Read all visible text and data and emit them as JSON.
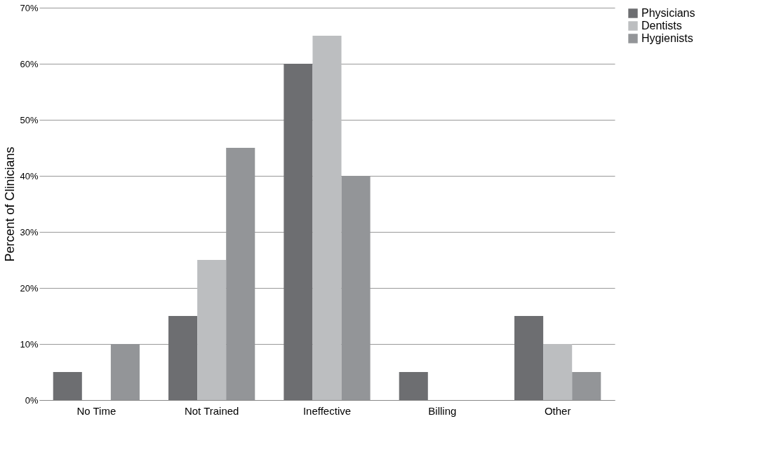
{
  "chart_data": {
    "type": "bar",
    "ylabel": "Percent of Clinicians",
    "categories": [
      "No Time",
      "Not Trained",
      "Ineffective",
      "Billing",
      "Other"
    ],
    "series": [
      {
        "name": "Physicians",
        "color": "#6d6e71",
        "values": [
          5,
          15,
          60,
          5,
          15
        ]
      },
      {
        "name": "Dentists",
        "color": "#bcbec0",
        "values": [
          0,
          25,
          65,
          0,
          10
        ]
      },
      {
        "name": "Hygienists",
        "color": "#939598",
        "values": [
          10,
          45,
          40,
          0,
          5
        ]
      }
    ],
    "ylim": [
      0,
      70
    ],
    "yticks": [
      {
        "value": 0,
        "label": "0%"
      },
      {
        "value": 10,
        "label": "10%"
      },
      {
        "value": 20,
        "label": "20%"
      },
      {
        "value": 30,
        "label": "30%"
      },
      {
        "value": 40,
        "label": "40%"
      },
      {
        "value": 50,
        "label": "50%"
      },
      {
        "value": 60,
        "label": "60%"
      },
      {
        "value": 70,
        "label": "70%"
      }
    ],
    "grid": "y",
    "legend": "right"
  }
}
